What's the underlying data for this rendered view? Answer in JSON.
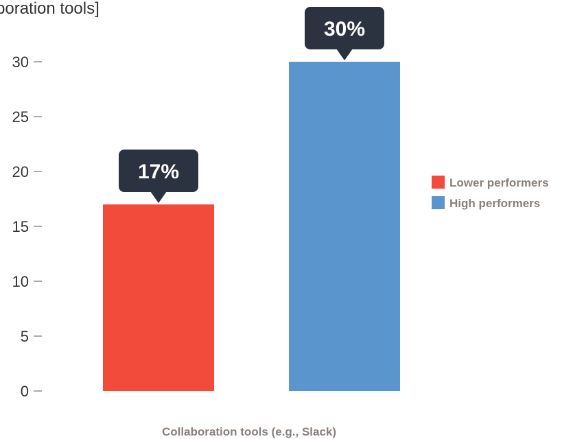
{
  "chart_data": {
    "type": "bar",
    "title": "boration tools]",
    "xlabel": "Collaboration tools (e.g., Slack)",
    "ylabel": "",
    "ylim": [
      0,
      30
    ],
    "yticks": [
      0,
      5,
      10,
      15,
      20,
      25,
      30
    ],
    "grid": false,
    "legend_position": "right",
    "series": [
      {
        "name": "Lower performers",
        "value": 17,
        "label": "17%",
        "color": "#f24b3c"
      },
      {
        "name": "High performers",
        "value": 30,
        "label": "30%",
        "color": "#5b95cd"
      }
    ],
    "callout_color": "#2b3340"
  }
}
